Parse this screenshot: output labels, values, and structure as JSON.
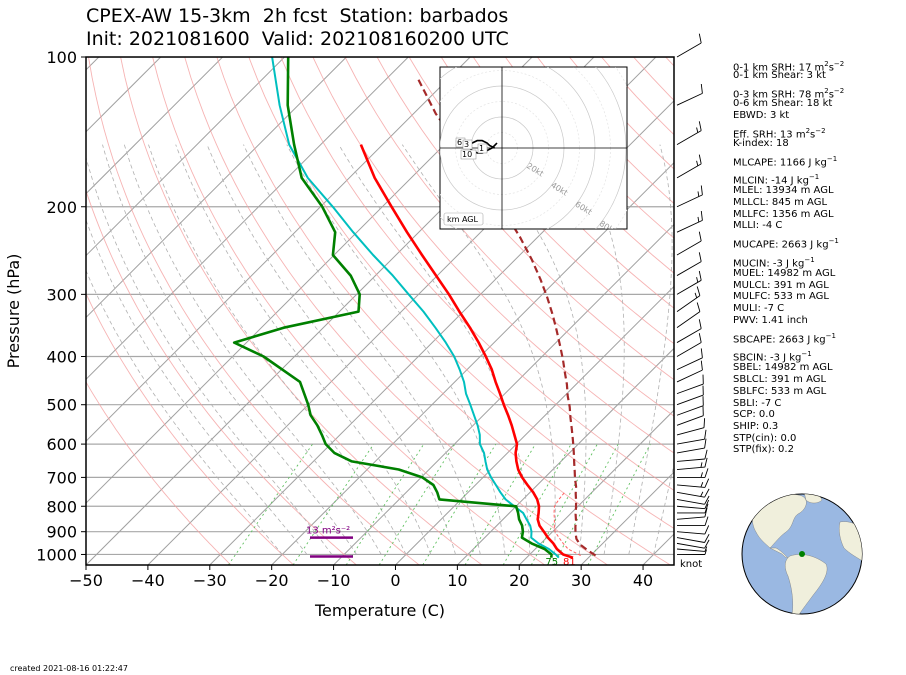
{
  "title_line1": "CPEX-AW 15-3km  2h fcst  Station: barbados",
  "title_line2": "Init: 2021081600  Valid: 202108160200 UTC",
  "created": "created 2021-08-16 01:22:47",
  "wind_unit": "knot",
  "colors": {
    "temperature": "#ff0000",
    "dewpoint": "#008000",
    "wetbulb": "#00bfbf",
    "parcel": "#a52a2a",
    "srh": "#800080",
    "isotherm": "#a0a0a0",
    "dry_adiabat": "#f4a0a0",
    "moist_adiabat": "#b0b0b0",
    "mixing_ratio": "#60c060"
  },
  "indices": [
    {
      "key": "SRH1",
      "label": "0-1 km SRH: 17 m",
      "sup": "2",
      "mid": "s",
      "sup2": "−2"
    },
    {
      "key": "SHR1",
      "label": "0-1 km Shear: 3 kt"
    },
    {
      "key": "SRH3",
      "label": "0-3 km SRH: 78 m",
      "sup": "2",
      "mid": "s",
      "sup2": "−2"
    },
    {
      "key": "SHR6",
      "label": "0-6 km Shear: 18 kt"
    },
    {
      "key": "EBWD",
      "label": "EBWD: 3 kt"
    },
    {
      "key": "ESRH",
      "label": "Eff. SRH: 13 m",
      "sup": "2",
      "mid": "s",
      "sup2": "−2"
    },
    {
      "key": "KI",
      "label": "K-index: 18"
    },
    {
      "key": "MLCAPE",
      "label": "MLCAPE: 1166 J kg",
      "sup": "−1"
    },
    {
      "key": "MLCIN",
      "label": "MLCIN: -14 J kg",
      "sup": "−1"
    },
    {
      "key": "MLEL",
      "label": "MLEL: 13934 m AGL"
    },
    {
      "key": "MLLCL",
      "label": "MLLCL: 845 m AGL"
    },
    {
      "key": "MLLFC",
      "label": "MLLFC: 1356 m AGL"
    },
    {
      "key": "MLLI",
      "label": "MLLI: -4 C"
    },
    {
      "key": "MUCAPE",
      "label": "MUCAPE: 2663 J kg",
      "sup": "−1"
    },
    {
      "key": "MUCIN",
      "label": "MUCIN: -3 J kg",
      "sup": "−1"
    },
    {
      "key": "MUEL",
      "label": "MUEL: 14982 m AGL"
    },
    {
      "key": "MULCL",
      "label": "MULCL: 391 m AGL"
    },
    {
      "key": "MULFC",
      "label": "MULFC: 533 m AGL"
    },
    {
      "key": "MULI",
      "label": "MULI: -7 C"
    },
    {
      "key": "PWV",
      "label": "PWV: 1.41 inch"
    },
    {
      "key": "SBCAPE",
      "label": "SBCAPE: 2663 J kg",
      "sup": "−1"
    },
    {
      "key": "SBCIN",
      "label": "SBCIN: -3 J kg",
      "sup": "−1"
    },
    {
      "key": "SBEL",
      "label": "SBEL: 14982 m AGL"
    },
    {
      "key": "SBLCL",
      "label": "SBLCL: 391 m AGL"
    },
    {
      "key": "SBLFC",
      "label": "SBLFC: 533 m AGL"
    },
    {
      "key": "SBLI",
      "label": "SBLI: -7 C"
    },
    {
      "key": "SCP",
      "label": "SCP: 0.0"
    },
    {
      "key": "SHIP",
      "label": "SHIP: 0.3"
    },
    {
      "key": "STPCIN",
      "label": "STP(cin): 0.0"
    },
    {
      "key": "STPFIX",
      "label": "STP(fix): 0.2"
    }
  ],
  "chart_data": {
    "type": "line",
    "subtype": "skew-T log-p sounding",
    "xlabel": "Temperature (C)",
    "ylabel": "Pressure (hPa)",
    "xlim": [
      -50,
      45
    ],
    "ylim": [
      1050,
      100
    ],
    "y_scale": "log",
    "skew_degrees": 45,
    "xticks": [
      -50,
      -40,
      -30,
      -20,
      -10,
      0,
      10,
      20,
      30,
      40
    ],
    "xtick_labels": [
      "−50",
      "−40",
      "−30",
      "−20",
      "−10",
      "0",
      "10",
      "20",
      "30",
      "40"
    ],
    "yticks": [
      100,
      200,
      300,
      400,
      500,
      600,
      700,
      800,
      900,
      1000
    ],
    "series": [
      {
        "key": "temperature",
        "p": [
          1015,
          1000,
          975,
          950,
          925,
          900,
          875,
          850,
          825,
          800,
          775,
          750,
          725,
          700,
          675,
          650,
          625,
          600,
          575,
          550,
          525,
          500,
          475,
          450,
          425,
          400,
          375,
          350,
          325,
          300,
          275,
          250,
          225,
          200,
          175,
          150
        ],
        "t": [
          27.5,
          25.4,
          23.5,
          22.0,
          20.2,
          18.6,
          16.9,
          15.6,
          14.7,
          13.7,
          12.3,
          10.5,
          8.4,
          6.3,
          4.4,
          2.8,
          1.3,
          0.1,
          -1.8,
          -3.8,
          -6.0,
          -8.4,
          -10.8,
          -13.4,
          -16.0,
          -19.1,
          -22.5,
          -26.3,
          -30.6,
          -35.1,
          -40.2,
          -45.8,
          -51.9,
          -58.5,
          -65.9,
          -73.5
        ]
      },
      {
        "key": "dewpoint",
        "p": [
          1015,
          1000,
          975,
          950,
          925,
          900,
          875,
          850,
          825,
          800,
          775,
          750,
          725,
          700,
          675,
          650,
          625,
          600,
          575,
          550,
          525,
          500,
          450,
          400,
          375,
          350,
          325,
          300,
          275,
          250,
          225,
          200,
          175,
          150,
          125,
          100
        ],
        "t": [
          24.0,
          23.5,
          21.5,
          18.5,
          16.0,
          15.2,
          14.1,
          12.6,
          11.4,
          10.0,
          -3.5,
          -5.0,
          -6.8,
          -9.8,
          -14.9,
          -23.8,
          -28.0,
          -30.8,
          -32.9,
          -35.2,
          -37.9,
          -40.0,
          -45.0,
          -55.0,
          -62.0,
          -56.4,
          -46.9,
          -49.5,
          -54.0,
          -60.2,
          -63.5,
          -69.7,
          -77.7,
          -84.3,
          -91.7,
          -99.4
        ]
      },
      {
        "key": "wetbulb",
        "p": [
          1015,
          1000,
          975,
          950,
          925,
          900,
          875,
          850,
          825,
          800,
          775,
          750,
          725,
          700,
          675,
          650,
          625,
          600,
          575,
          550,
          525,
          500,
          475,
          450,
          425,
          400,
          375,
          350,
          325,
          300,
          275,
          250,
          225,
          200,
          175,
          150,
          125,
          100
        ],
        "t": [
          25.2,
          24.2,
          22.2,
          19.6,
          17.5,
          16.6,
          15.4,
          13.8,
          12.2,
          9.7,
          7.2,
          5.2,
          3.3,
          1.3,
          -0.6,
          -2.2,
          -3.8,
          -5.9,
          -7.4,
          -9.3,
          -11.5,
          -13.8,
          -16.3,
          -18.5,
          -21.2,
          -24.2,
          -27.8,
          -31.9,
          -36.4,
          -41.6,
          -47.2,
          -53.7,
          -60.6,
          -68.0,
          -76.7,
          -85.1,
          -93.0,
          -102.0
        ]
      },
      {
        "key": "parcel",
        "p": [
          1005,
          980,
          955,
          930,
          905,
          880,
          855,
          830,
          805,
          780,
          755,
          730,
          705,
          680,
          655,
          630,
          605,
          580,
          555,
          530,
          505,
          480,
          455,
          430,
          405,
          380,
          355,
          330,
          305,
          280,
          255,
          230,
          205,
          180,
          155,
          130,
          110
        ],
        "t": [
          30.8,
          28.6,
          26.5,
          25.0,
          23.9,
          22.9,
          22.0,
          20.9,
          19.9,
          18.8,
          17.6,
          16.5,
          15.1,
          13.8,
          12.4,
          11.0,
          9.5,
          7.9,
          6.2,
          4.4,
          2.6,
          0.5,
          -1.5,
          -3.8,
          -6.2,
          -8.9,
          -11.8,
          -15.0,
          -18.6,
          -22.7,
          -27.4,
          -32.9,
          -39.4,
          -47.0,
          -55.9,
          -66.4,
          -75.2
        ]
      },
      {
        "key": "virtual",
        "p": [
          1005,
          975,
          950,
          925,
          900,
          875,
          850,
          825,
          800,
          775,
          750
        ],
        "t": [
          28.4,
          25.3,
          23.6,
          22.0,
          20.4,
          19.3,
          18.3,
          17.2,
          16.2,
          15.8,
          15.6
        ]
      }
    ],
    "surface_labels": {
      "temperature": "81",
      "dewpoint": "75"
    },
    "srh_annotation": "13 m²s⁻²",
    "srh_bars": [
      {
        "p_bottom": 1000,
        "p_top": 925
      }
    ],
    "wind_barbs": [
      {
        "p": 1000,
        "wdir": 90,
        "wspd": 5
      },
      {
        "p": 975,
        "wdir": 95,
        "wspd": 8
      },
      {
        "p": 950,
        "wdir": 100,
        "wspd": 10
      },
      {
        "p": 925,
        "wdir": 100,
        "wspd": 10
      },
      {
        "p": 900,
        "wdir": 95,
        "wspd": 12
      },
      {
        "p": 875,
        "wdir": 90,
        "wspd": 12
      },
      {
        "p": 850,
        "wdir": 85,
        "wspd": 12
      },
      {
        "p": 825,
        "wdir": 90,
        "wspd": 10
      },
      {
        "p": 800,
        "wdir": 95,
        "wspd": 10
      },
      {
        "p": 775,
        "wdir": 100,
        "wspd": 12
      },
      {
        "p": 750,
        "wdir": 100,
        "wspd": 15
      },
      {
        "p": 725,
        "wdir": 95,
        "wspd": 15
      },
      {
        "p": 700,
        "wdir": 90,
        "wspd": 15
      },
      {
        "p": 675,
        "wdir": 85,
        "wspd": 15
      },
      {
        "p": 650,
        "wdir": 85,
        "wspd": 12
      },
      {
        "p": 625,
        "wdir": 80,
        "wspd": 12
      },
      {
        "p": 600,
        "wdir": 80,
        "wspd": 10
      },
      {
        "p": 575,
        "wdir": 75,
        "wspd": 10
      },
      {
        "p": 550,
        "wdir": 70,
        "wspd": 10
      },
      {
        "p": 525,
        "wdir": 70,
        "wspd": 12
      },
      {
        "p": 500,
        "wdir": 70,
        "wspd": 12
      },
      {
        "p": 475,
        "wdir": 70,
        "wspd": 12
      },
      {
        "p": 450,
        "wdir": 65,
        "wspd": 12
      },
      {
        "p": 425,
        "wdir": 65,
        "wspd": 10
      },
      {
        "p": 400,
        "wdir": 60,
        "wspd": 10
      },
      {
        "p": 375,
        "wdir": 60,
        "wspd": 12
      },
      {
        "p": 350,
        "wdir": 55,
        "wspd": 12
      },
      {
        "p": 325,
        "wdir": 55,
        "wspd": 15
      },
      {
        "p": 300,
        "wdir": 60,
        "wspd": 15
      },
      {
        "p": 275,
        "wdir": 60,
        "wspd": 12
      },
      {
        "p": 250,
        "wdir": 60,
        "wspd": 12
      },
      {
        "p": 225,
        "wdir": 65,
        "wspd": 15
      },
      {
        "p": 200,
        "wdir": 65,
        "wspd": 15
      },
      {
        "p": 175,
        "wdir": 60,
        "wspd": 15
      },
      {
        "p": 150,
        "wdir": 60,
        "wspd": 15
      },
      {
        "p": 125,
        "wdir": 65,
        "wspd": 12
      },
      {
        "p": 100,
        "wdir": 60,
        "wspd": 10
      }
    ],
    "hodograph": {
      "ring_labels": [
        "20kt",
        "40kt",
        "60kt",
        "80kt"
      ],
      "height_labels": [
        "6",
        "3",
        "10",
        "1"
      ],
      "footer": "km AGL",
      "points_u": [
        -3,
        -5,
        -6,
        -8,
        -10,
        -12,
        -14,
        -12,
        -10,
        -8,
        -6,
        -4,
        -3,
        -2
      ],
      "points_v": [
        0,
        1,
        2,
        3,
        3,
        2,
        1,
        -1,
        -2,
        -2,
        -1,
        0,
        1,
        2
      ]
    },
    "inset_map": {
      "location": "barbados",
      "lat": 13.1,
      "lon": -59.6
    }
  }
}
